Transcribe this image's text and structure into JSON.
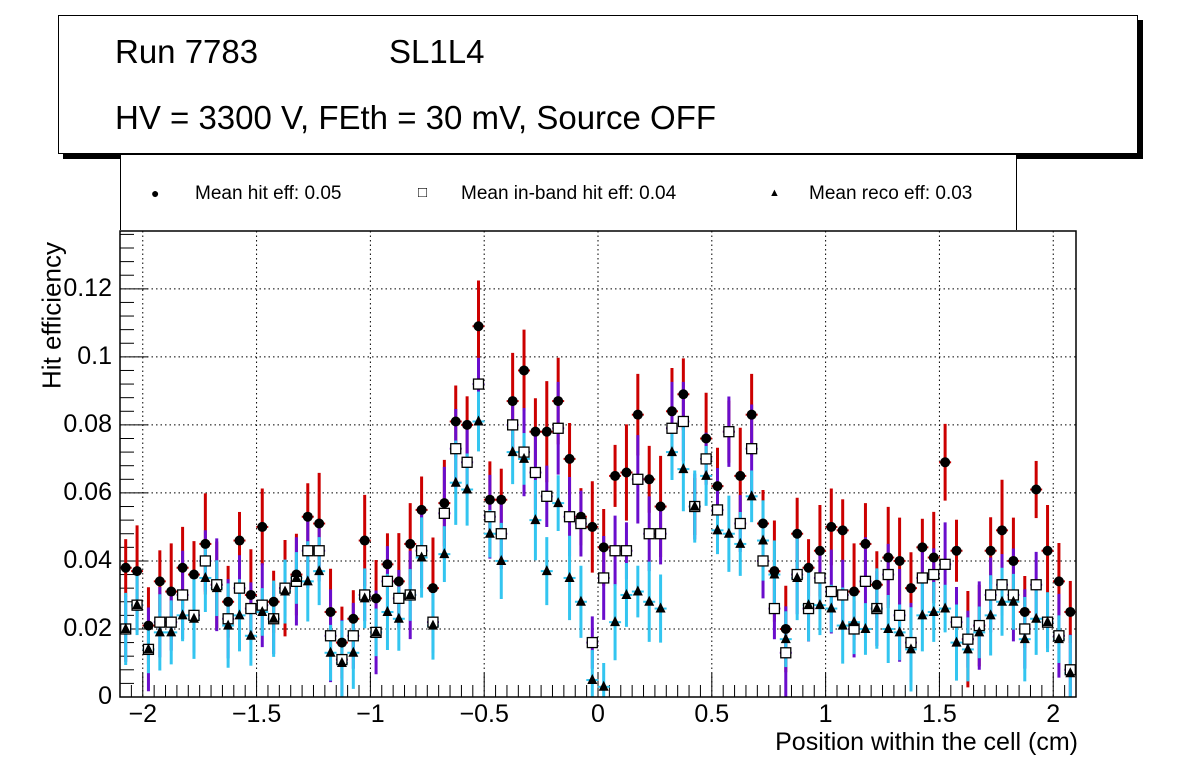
{
  "title": {
    "run": "Run 7783",
    "layer": "SL1L4",
    "conditions": "HV = 3300 V, FEth = 30 mV, Source OFF"
  },
  "legend": [
    {
      "symbol": "filled-circle",
      "label": "Mean hit  eff: 0.05"
    },
    {
      "symbol": "open-square",
      "label": "Mean in-band hit eff: 0.04"
    },
    {
      "symbol": "filled-triangle",
      "label": "Mean reco eff: 0.03"
    }
  ],
  "chart_data": {
    "type": "scatter",
    "title": "Run 7783 SL1L4 — HV = 3300 V, FEth = 30 mV, Source OFF",
    "xlabel": "Position within the cell (cm)",
    "ylabel": "Hit efficiency",
    "xlim": [
      -2.1,
      2.1
    ],
    "ylim": [
      0,
      0.137
    ],
    "grid": true,
    "legend_position": "top",
    "xticks": [
      "−2",
      "−1.5",
      "−1",
      "−0.5",
      "0",
      "0.5",
      "1",
      "1.5",
      "2"
    ],
    "xtick_values": [
      -2,
      -1.5,
      -1,
      -0.5,
      0,
      0.5,
      1,
      1.5,
      2
    ],
    "yticks": [
      "0",
      "0.02",
      "0.04",
      "0.06",
      "0.08",
      "0.1",
      "0.12"
    ],
    "ytick_values": [
      0,
      0.02,
      0.04,
      0.06,
      0.08,
      0.1,
      0.12
    ],
    "colors": {
      "hit_err": "#cc0000",
      "inband_err": "#6a0dcc",
      "reco_err": "#33c5f0",
      "marker": "#000000"
    },
    "x": [
      -2.075,
      -2.025,
      -1.975,
      -1.925,
      -1.875,
      -1.825,
      -1.775,
      -1.725,
      -1.675,
      -1.625,
      -1.575,
      -1.525,
      -1.475,
      -1.425,
      -1.375,
      -1.325,
      -1.275,
      -1.225,
      -1.175,
      -1.125,
      -1.075,
      -1.025,
      -0.975,
      -0.925,
      -0.875,
      -0.825,
      -0.775,
      -0.725,
      -0.675,
      -0.625,
      -0.575,
      -0.525,
      -0.475,
      -0.425,
      -0.375,
      -0.325,
      -0.275,
      -0.225,
      -0.175,
      -0.125,
      -0.075,
      -0.025,
      0.025,
      0.075,
      0.125,
      0.175,
      0.225,
      0.275,
      0.325,
      0.375,
      0.425,
      0.475,
      0.525,
      0.575,
      0.625,
      0.675,
      0.725,
      0.775,
      0.825,
      0.875,
      0.925,
      0.975,
      1.025,
      1.075,
      1.125,
      1.175,
      1.225,
      1.275,
      1.325,
      1.375,
      1.425,
      1.475,
      1.525,
      1.575,
      1.625,
      1.675,
      1.725,
      1.775,
      1.825,
      1.875,
      1.925,
      1.975,
      2.025,
      2.075
    ],
    "series": [
      {
        "name": "Mean hit  eff",
        "marker": "filled-circle",
        "values": [
          0.038,
          0.037,
          0.021,
          0.034,
          0.031,
          0.038,
          0.036,
          0.045,
          0.033,
          0.028,
          0.046,
          0.03,
          0.05,
          0.028,
          0.032,
          0.036,
          0.053,
          0.051,
          0.025,
          0.016,
          0.023,
          0.046,
          0.029,
          0.039,
          0.034,
          0.045,
          0.055,
          0.032,
          0.057,
          0.081,
          0.08,
          0.109,
          0.058,
          0.058,
          0.087,
          0.096,
          0.078,
          0.078,
          0.087,
          0.07,
          0.053,
          0.05,
          0.044,
          0.065,
          0.066,
          0.083,
          0.064,
          0.056,
          0.084,
          0.089,
          0.056,
          0.076,
          0.062,
          0.078,
          0.065,
          0.083,
          0.051,
          0.037,
          0.02,
          0.048,
          0.038,
          0.043,
          0.05,
          0.049,
          0.031,
          0.045,
          0.033,
          0.041,
          0.04,
          0.032,
          0.044,
          0.041,
          0.069,
          0.043,
          0.017,
          0.021,
          0.043,
          0.049,
          0.04,
          0.025,
          0.061,
          0.043,
          0.034,
          0.025
        ]
      },
      {
        "name": "Mean in-band hit eff",
        "marker": "open-square",
        "values": [
          0.02,
          0.027,
          0.014,
          0.022,
          0.022,
          0.03,
          0.024,
          0.04,
          0.033,
          0.023,
          0.032,
          0.026,
          0.027,
          0.023,
          0.032,
          0.034,
          0.043,
          0.043,
          0.018,
          0.011,
          0.018,
          0.03,
          0.019,
          0.034,
          0.029,
          0.03,
          0.043,
          0.022,
          0.054,
          0.073,
          0.069,
          0.092,
          0.053,
          0.048,
          0.08,
          0.072,
          0.066,
          0.059,
          0.079,
          0.053,
          0.051,
          0.016,
          0.035,
          0.043,
          0.043,
          0.064,
          0.048,
          0.048,
          0.079,
          0.081,
          0.056,
          0.07,
          0.055,
          0.078,
          0.051,
          0.073,
          0.04,
          0.026,
          0.013,
          0.036,
          0.026,
          0.035,
          0.031,
          0.03,
          0.02,
          0.034,
          0.026,
          0.036,
          0.024,
          0.016,
          0.035,
          0.036,
          0.039,
          0.022,
          0.017,
          0.021,
          0.03,
          0.033,
          0.03,
          0.02,
          0.033,
          0.022,
          0.018,
          0.008
        ]
      },
      {
        "name": "Mean reco eff",
        "marker": "filled-triangle",
        "values": [
          0.02,
          0.027,
          0.014,
          0.019,
          0.019,
          0.024,
          0.023,
          0.035,
          0.032,
          0.021,
          0.024,
          0.018,
          0.025,
          0.023,
          0.031,
          0.035,
          0.034,
          0.037,
          0.013,
          0.01,
          0.013,
          0.029,
          0.019,
          0.025,
          0.023,
          0.03,
          0.041,
          0.021,
          0.042,
          0.063,
          0.061,
          0.081,
          0.048,
          0.04,
          0.072,
          0.07,
          0.052,
          0.037,
          0.057,
          0.035,
          0.028,
          0.005,
          0.003,
          0.022,
          0.03,
          0.031,
          0.028,
          0.026,
          0.072,
          0.067,
          0.056,
          0.065,
          0.049,
          0.048,
          0.045,
          0.059,
          0.046,
          0.036,
          0.017,
          0.035,
          0.027,
          0.027,
          0.026,
          0.021,
          0.022,
          0.02,
          0.026,
          0.02,
          0.019,
          0.014,
          0.024,
          0.025,
          0.026,
          0.016,
          0.014,
          0.019,
          0.024,
          0.028,
          0.028,
          0.017,
          0.023,
          0.022,
          0.017,
          0.007
        ]
      }
    ],
    "error_half_widths": {
      "hit": 0.012,
      "inband": 0.011,
      "reco": 0.01
    }
  }
}
